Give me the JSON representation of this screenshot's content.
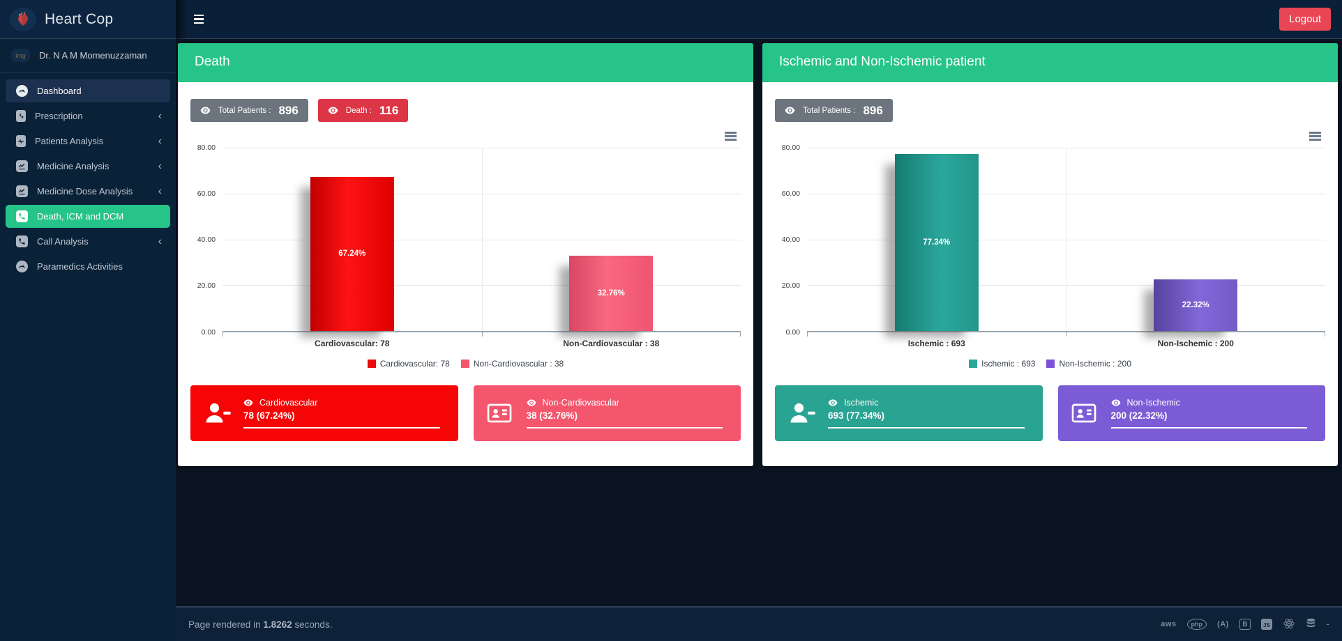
{
  "topbar": {
    "brand": "Heart Cop",
    "logout_label": "Logout"
  },
  "sidebar": {
    "user": {
      "name": "Dr. N A M Momenuzzaman",
      "avatar_placeholder": "img"
    },
    "items": [
      {
        "label": "Dashboard",
        "icon": "gauge-icon",
        "active": true
      },
      {
        "label": "Prescription",
        "icon": "prescription-file-icon",
        "chevron": "‹"
      },
      {
        "label": "Patients Analysis",
        "icon": "medical-file-icon",
        "chevron": "‹"
      },
      {
        "label": "Medicine Analysis",
        "icon": "chart-line-icon",
        "chevron": "‹"
      },
      {
        "label": "Medicine Dose Analysis",
        "icon": "chart-line-icon",
        "chevron": "‹"
      },
      {
        "label": "Death, ICM and DCM",
        "icon": "phone-icon",
        "highlight": true
      },
      {
        "label": "Call Analysis",
        "icon": "phone-icon",
        "chevron": "‹"
      },
      {
        "label": "Paramedics Activities",
        "icon": "gauge-icon"
      }
    ]
  },
  "cards": [
    {
      "title": "Death",
      "badges": [
        {
          "label": "Total Patients :",
          "value": "896",
          "color": "#6c757d"
        },
        {
          "label": "Death :",
          "value": "116",
          "color": "#dc3545"
        }
      ],
      "stats": [
        {
          "label": "Cardiovascular",
          "value": "78 (67.24%)",
          "color": "#f50505",
          "icon": "person-minus-icon"
        },
        {
          "label": "Non-Cardiovascular",
          "value": "38 (32.76%)",
          "color": "#f4566e",
          "icon": "id-card-icon"
        }
      ]
    },
    {
      "title": "Ischemic and Non-Ischemic patient",
      "badges": [
        {
          "label": "Total Patients :",
          "value": "896",
          "color": "#6c757d"
        }
      ],
      "stats": [
        {
          "label": "Ischemic",
          "value": "693 (77.34%)",
          "color": "#29a392",
          "icon": "person-minus-icon"
        },
        {
          "label": "Non-Ischemic",
          "value": "200 (22.32%)",
          "color": "#7c5cd6",
          "icon": "id-card-icon"
        }
      ]
    }
  ],
  "chart_data": [
    {
      "type": "bar",
      "title": "Death",
      "categories": [
        "Cardiovascular: 78",
        "Non-Cardiovascular : 38"
      ],
      "counts": [
        78,
        38
      ],
      "values": [
        67.24,
        32.76
      ],
      "value_labels": [
        "67.24%",
        "32.76%"
      ],
      "h_pct": [
        84.05,
        40.95
      ],
      "colors": [
        "#e80b0b",
        "#f4566e"
      ],
      "ylim": [
        0,
        80
      ],
      "yticks": [
        "80.00",
        "60.00",
        "40.00",
        "20.00",
        "0.00"
      ],
      "legend": [
        "Cardiovascular: 78",
        "Non-Cardiovascular : 38"
      ],
      "grid": true,
      "legend_position": "bottom"
    },
    {
      "type": "bar",
      "title": "Ischemic and Non-Ischemic patient",
      "categories": [
        "Ischemic : 693",
        "Non-Ischemic : 200"
      ],
      "counts": [
        693,
        200
      ],
      "values": [
        77.34,
        22.32
      ],
      "value_labels": [
        "77.34%",
        "22.32%"
      ],
      "h_pct": [
        96.68,
        27.9
      ],
      "colors": [
        "#2aa79b",
        "#7d52d8"
      ],
      "ylim": [
        0,
        80
      ],
      "yticks": [
        "80.00",
        "60.00",
        "40.00",
        "20.00",
        "0.00"
      ],
      "legend": [
        "Ischemic : 693",
        "Non-Ischemic : 200"
      ],
      "grid": true,
      "legend_position": "bottom"
    }
  ],
  "footer": {
    "prefix": "Page rendered in",
    "seconds": "1.8262",
    "suffix": "seconds.",
    "tech": [
      "aws",
      "php",
      "(A)",
      "B",
      "JS",
      "-"
    ]
  }
}
